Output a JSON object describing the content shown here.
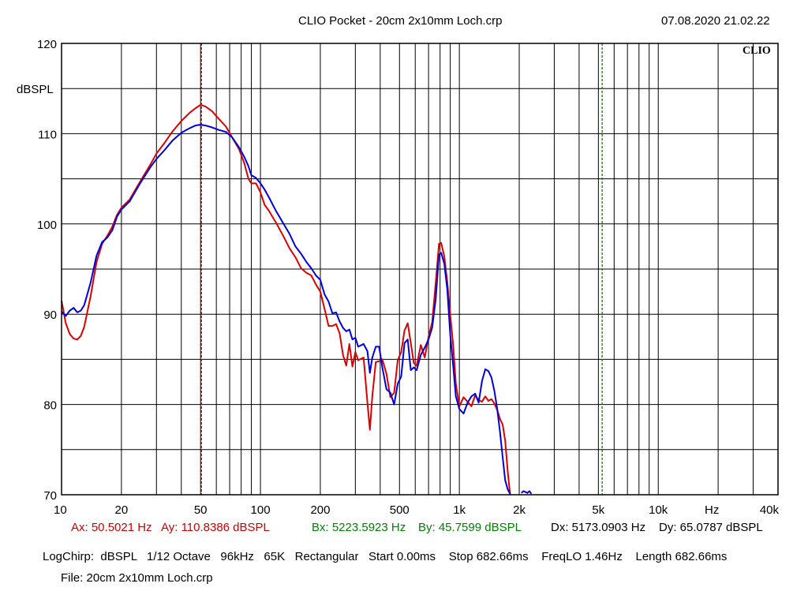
{
  "header": {
    "title": "CLIO Pocket - 20cm 2x10mm Loch.crp",
    "datetime": "07.08.2020 21.02.22"
  },
  "brand": "CLIO",
  "chart_data": {
    "type": "line",
    "x_scale": "log",
    "ylabel": "dBSPL",
    "xlabel": "Hz",
    "xlim": [
      10,
      40000
    ],
    "ylim": [
      70,
      120
    ],
    "grid": true,
    "y_ticks": [
      {
        "v": 120,
        "label": "120"
      },
      {
        "v": 110,
        "label": "110"
      },
      {
        "v": 100,
        "label": "100"
      },
      {
        "v": 90,
        "label": "90"
      },
      {
        "v": 80,
        "label": "80"
      },
      {
        "v": 70,
        "label": "70"
      }
    ],
    "x_ticks": [
      {
        "v": 10,
        "label": "10"
      },
      {
        "v": 20,
        "label": "20"
      },
      {
        "v": 50,
        "label": "50"
      },
      {
        "v": 100,
        "label": "100"
      },
      {
        "v": 200,
        "label": "200"
      },
      {
        "v": 500,
        "label": "500"
      },
      {
        "v": 1000,
        "label": "1k"
      },
      {
        "v": 2000,
        "label": "2k"
      },
      {
        "v": 5000,
        "label": "5k"
      },
      {
        "v": 10000,
        "label": "10k"
      },
      {
        "v": 40000,
        "label": "40k"
      }
    ],
    "cursors": [
      {
        "x": 50.5021,
        "color": "#cc0000"
      },
      {
        "x": 5223.5923,
        "color": "#008000"
      }
    ],
    "series": [
      {
        "color": "#dd0000",
        "points": [
          [
            10,
            91.5
          ],
          [
            10.5,
            89
          ],
          [
            11,
            87.8
          ],
          [
            11.5,
            87.3
          ],
          [
            12,
            87.2
          ],
          [
            12.5,
            87.6
          ],
          [
            13,
            88.6
          ],
          [
            14,
            92
          ],
          [
            15,
            95.8
          ],
          [
            16,
            97.8
          ],
          [
            17,
            98.7
          ],
          [
            18,
            99.7
          ],
          [
            19,
            101
          ],
          [
            20,
            101.8
          ],
          [
            22,
            102.7
          ],
          [
            25,
            104.8
          ],
          [
            28,
            106.6
          ],
          [
            30,
            107.8
          ],
          [
            33,
            109
          ],
          [
            36,
            110.2
          ],
          [
            40,
            111.4
          ],
          [
            44,
            112.3
          ],
          [
            47,
            112.8
          ],
          [
            50,
            113.2
          ],
          [
            53,
            113
          ],
          [
            57,
            112.5
          ],
          [
            62,
            111.6
          ],
          [
            67,
            110.8
          ],
          [
            72,
            109.6
          ],
          [
            78,
            108.3
          ],
          [
            83,
            106.7
          ],
          [
            87,
            105
          ],
          [
            90,
            104.5
          ],
          [
            95,
            104.5
          ],
          [
            100,
            103.5
          ],
          [
            105,
            102.1
          ],
          [
            110,
            101.5
          ],
          [
            120,
            100.1
          ],
          [
            130,
            98.7
          ],
          [
            140,
            97.3
          ],
          [
            150,
            96.3
          ],
          [
            160,
            95.1
          ],
          [
            170,
            94.6
          ],
          [
            180,
            94.3
          ],
          [
            190,
            93.3
          ],
          [
            200,
            92.5
          ],
          [
            210,
            90.6
          ],
          [
            220,
            88.7
          ],
          [
            230,
            88.7
          ],
          [
            240,
            88.9
          ],
          [
            250,
            87.9
          ],
          [
            260,
            85.5
          ],
          [
            270,
            84.3
          ],
          [
            280,
            86.7
          ],
          [
            290,
            84.2
          ],
          [
            300,
            85.8
          ],
          [
            310,
            84.9
          ],
          [
            330,
            85.2
          ],
          [
            345,
            80.2
          ],
          [
            355,
            77.2
          ],
          [
            365,
            80.9
          ],
          [
            380,
            84.7
          ],
          [
            395,
            84.8
          ],
          [
            410,
            85
          ],
          [
            430,
            83.4
          ],
          [
            450,
            80.8
          ],
          [
            470,
            81.3
          ],
          [
            490,
            84.9
          ],
          [
            510,
            85.8
          ],
          [
            530,
            88.2
          ],
          [
            550,
            89
          ],
          [
            570,
            86.8
          ],
          [
            590,
            84.6
          ],
          [
            610,
            84.3
          ],
          [
            640,
            86.6
          ],
          [
            670,
            85.2
          ],
          [
            700,
            87.5
          ],
          [
            730,
            89.1
          ],
          [
            760,
            93.4
          ],
          [
            790,
            97.8
          ],
          [
            810,
            97.9
          ],
          [
            840,
            96.4
          ],
          [
            870,
            93.5
          ],
          [
            900,
            89.9
          ],
          [
            930,
            86.7
          ],
          [
            960,
            82.3
          ],
          [
            1000,
            79.8
          ],
          [
            1050,
            80.8
          ],
          [
            1100,
            80.3
          ],
          [
            1150,
            79.8
          ],
          [
            1200,
            81
          ],
          [
            1250,
            80.5
          ],
          [
            1300,
            80.3
          ],
          [
            1350,
            80.9
          ],
          [
            1400,
            80.4
          ],
          [
            1450,
            80.6
          ],
          [
            1500,
            80.1
          ],
          [
            1550,
            79.4
          ],
          [
            1600,
            78.4
          ],
          [
            1650,
            77.8
          ],
          [
            1700,
            76
          ],
          [
            1750,
            72.6
          ],
          [
            1800,
            70
          ]
        ]
      },
      {
        "color": "#0000dd",
        "points": [
          [
            10,
            90.3
          ],
          [
            10.5,
            89.8
          ],
          [
            11,
            90.4
          ],
          [
            11.5,
            90.7
          ],
          [
            12,
            90.2
          ],
          [
            12.5,
            90.4
          ],
          [
            13,
            91
          ],
          [
            14,
            93.5
          ],
          [
            15,
            96.5
          ],
          [
            16,
            98
          ],
          [
            17,
            98.5
          ],
          [
            18,
            99.3
          ],
          [
            19,
            100.8
          ],
          [
            20,
            101.6
          ],
          [
            22,
            102.5
          ],
          [
            25,
            104.6
          ],
          [
            28,
            106.3
          ],
          [
            30,
            107.2
          ],
          [
            33,
            108.2
          ],
          [
            36,
            109.2
          ],
          [
            40,
            110.1
          ],
          [
            44,
            110.6
          ],
          [
            47,
            110.9
          ],
          [
            50,
            111
          ],
          [
            53,
            110.9
          ],
          [
            57,
            110.7
          ],
          [
            62,
            110.4
          ],
          [
            67,
            110.2
          ],
          [
            72,
            109.6
          ],
          [
            78,
            108.5
          ],
          [
            83,
            107.4
          ],
          [
            87,
            106.4
          ],
          [
            90,
            105.4
          ],
          [
            95,
            105.1
          ],
          [
            100,
            104.5
          ],
          [
            105,
            103.8
          ],
          [
            110,
            103
          ],
          [
            120,
            101.4
          ],
          [
            130,
            100.1
          ],
          [
            140,
            98.9
          ],
          [
            150,
            97.5
          ],
          [
            160,
            96.7
          ],
          [
            170,
            95.8
          ],
          [
            180,
            95.1
          ],
          [
            190,
            94.3
          ],
          [
            200,
            93.8
          ],
          [
            210,
            92.2
          ],
          [
            220,
            91.4
          ],
          [
            230,
            90.1
          ],
          [
            240,
            90.2
          ],
          [
            250,
            89.2
          ],
          [
            260,
            88.5
          ],
          [
            270,
            88.1
          ],
          [
            280,
            88.3
          ],
          [
            290,
            87.2
          ],
          [
            300,
            87.4
          ],
          [
            310,
            86.4
          ],
          [
            330,
            86.7
          ],
          [
            345,
            85.9
          ],
          [
            355,
            83.5
          ],
          [
            365,
            85.2
          ],
          [
            380,
            86.4
          ],
          [
            395,
            86.4
          ],
          [
            410,
            84.1
          ],
          [
            430,
            81.7
          ],
          [
            450,
            81.3
          ],
          [
            470,
            80
          ],
          [
            490,
            82.3
          ],
          [
            510,
            83.1
          ],
          [
            530,
            86.8
          ],
          [
            550,
            87.2
          ],
          [
            570,
            83.8
          ],
          [
            590,
            84.1
          ],
          [
            610,
            83.8
          ],
          [
            640,
            85.5
          ],
          [
            670,
            86.3
          ],
          [
            700,
            87.2
          ],
          [
            730,
            88.5
          ],
          [
            760,
            91.6
          ],
          [
            790,
            96.6
          ],
          [
            810,
            96.8
          ],
          [
            840,
            95.6
          ],
          [
            870,
            92.7
          ],
          [
            900,
            87.7
          ],
          [
            930,
            84.4
          ],
          [
            960,
            80.9
          ],
          [
            1000,
            79.5
          ],
          [
            1050,
            79
          ],
          [
            1100,
            80.2
          ],
          [
            1150,
            80.9
          ],
          [
            1200,
            81.2
          ],
          [
            1250,
            80.2
          ],
          [
            1300,
            82.6
          ],
          [
            1350,
            83.9
          ],
          [
            1400,
            83.7
          ],
          [
            1450,
            83
          ],
          [
            1500,
            81.5
          ],
          [
            1550,
            79.5
          ],
          [
            1600,
            77
          ],
          [
            1650,
            74.2
          ],
          [
            1700,
            71.6
          ],
          [
            1750,
            70.6
          ],
          [
            1800,
            70.1
          ]
        ]
      },
      {
        "color": "#0000dd",
        "points": [
          [
            2050,
            70.2
          ],
          [
            2100,
            70.4
          ],
          [
            2150,
            70.3
          ],
          [
            2200,
            70.2
          ],
          [
            2250,
            70.4
          ],
          [
            2300,
            70.1
          ]
        ]
      }
    ]
  },
  "cursor_readout": {
    "ax": "Ax: 50.5021 Hz",
    "ay": "Ay: 110.8386 dBSPL",
    "bx": "Bx: 5223.5923 Hz",
    "by": "By: 45.7599 dBSPL",
    "dx": "Dx: 5173.0903 Hz",
    "dy": "Dy: 65.0787 dBSPL",
    "a_color": "#cc0000",
    "b_color": "#008000"
  },
  "info": {
    "line1": "LogChirp:  dBSPL   1/12 Octave   96kHz   65K   Rectangular   Start 0.00ms    Stop 682.66ms    FreqLO 1.46Hz    Length 682.66ms",
    "file": "File: 20cm 2x10mm Loch.crp"
  }
}
